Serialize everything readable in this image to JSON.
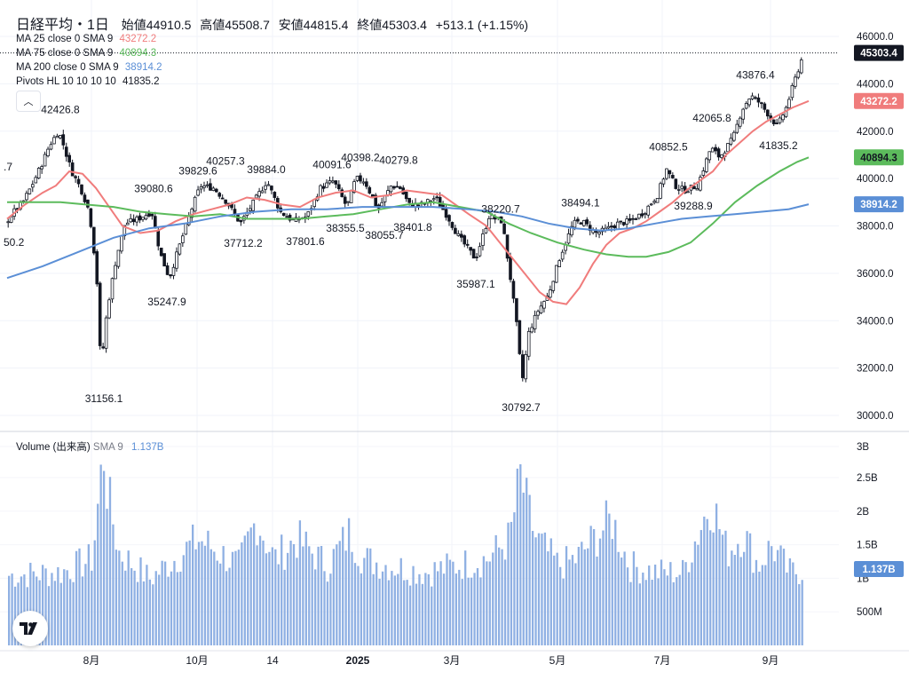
{
  "header": {
    "symbol": "日経平均・1日",
    "open_label": "始値",
    "open": "44910.5",
    "high_label": "高値",
    "high": "45508.7",
    "low_label": "安値",
    "low": "44815.4",
    "close_label": "終値",
    "close": "45303.4",
    "change": "+513.1 (+1.15%)"
  },
  "indicators": [
    {
      "label": "MA 25 close 0 SMA 9",
      "value": "43272.2",
      "color": "#f07c7c"
    },
    {
      "label": "MA 75 close 0 SMA 9",
      "value": "40894.3",
      "color": "#5cbb5c"
    },
    {
      "label": "MA 200 close 0 SMA 9",
      "value": "38914.2",
      "color": "#5b8fd6"
    },
    {
      "label": "Pivots HL 10 10 10 10",
      "value": "41835.2",
      "color": "#131722"
    }
  ],
  "volume_legend": {
    "label": "Volume (出来高)",
    "sma": "SMA 9",
    "value": "1.137B",
    "color": "#5b8fd6"
  },
  "price_axis_labels": [
    "46000.0",
    "44000.0",
    "42000.0",
    "40000.0",
    "38000.0",
    "36000.0",
    "34000.0",
    "32000.0",
    "30000.0"
  ],
  "price_badges": [
    {
      "value": "45303.4",
      "price": 45303.4,
      "bg": "#131722",
      "color": "#ffffff"
    },
    {
      "value": "43272.2",
      "price": 43272.2,
      "bg": "#f07c7c",
      "color": "#ffffff"
    },
    {
      "value": "40894.3",
      "price": 40894.3,
      "bg": "#5cbb5c",
      "color": "#131722"
    },
    {
      "value": "38914.2",
      "price": 38914.2,
      "bg": "#5b8fd6",
      "color": "#ffffff"
    }
  ],
  "volume_axis_labels": [
    "3B",
    "2.5B",
    "2B",
    "1.5B",
    "1B",
    "500M"
  ],
  "volume_badge": {
    "value": "1.137B"
  },
  "time_axis_labels": [
    "8月",
    "10月",
    "14",
    "2025",
    "3月",
    "5月",
    "7月",
    "9月"
  ],
  "chart_data": [
    {
      "type": "candlestick",
      "title": "日経平均・1日",
      "xlabel": "",
      "ylabel": "",
      "ylim": [
        29500,
        46800
      ],
      "y_ticks": [
        30000,
        32000,
        34000,
        36000,
        38000,
        40000,
        42000,
        44000,
        46000
      ],
      "series": [
        {
          "name": "MA 25 close 0 SMA 9",
          "color": "#f07c7c",
          "points": [
            [
              0,
              38300
            ],
            [
              20,
              38900
            ],
            [
              40,
              39400
            ],
            [
              55,
              39700
            ],
            [
              70,
              40300
            ],
            [
              85,
              40200
            ],
            [
              100,
              39600
            ],
            [
              115,
              38800
            ],
            [
              130,
              38000
            ],
            [
              150,
              37700
            ],
            [
              170,
              37800
            ],
            [
              190,
              38200
            ],
            [
              210,
              38500
            ],
            [
              230,
              38700
            ],
            [
              250,
              38900
            ],
            [
              270,
              39200
            ],
            [
              290,
              39100
            ],
            [
              310,
              38900
            ],
            [
              330,
              38800
            ],
            [
              350,
              39200
            ],
            [
              370,
              39400
            ],
            [
              390,
              39500
            ],
            [
              410,
              39200
            ],
            [
              430,
              39300
            ],
            [
              450,
              39500
            ],
            [
              470,
              39400
            ],
            [
              490,
              39300
            ],
            [
              505,
              38900
            ],
            [
              520,
              38500
            ],
            [
              540,
              38000
            ],
            [
              555,
              37300
            ],
            [
              570,
              36600
            ],
            [
              585,
              35900
            ],
            [
              600,
              35200
            ],
            [
              615,
              34800
            ],
            [
              630,
              34700
            ],
            [
              645,
              35400
            ],
            [
              660,
              36400
            ],
            [
              675,
              37200
            ],
            [
              690,
              37700
            ],
            [
              705,
              37900
            ],
            [
              720,
              38200
            ],
            [
              735,
              38600
            ],
            [
              750,
              39000
            ],
            [
              765,
              39500
            ],
            [
              780,
              39900
            ],
            [
              795,
              40300
            ],
            [
              810,
              41000
            ],
            [
              825,
              41500
            ],
            [
              840,
              42000
            ],
            [
              855,
              42400
            ],
            [
              870,
              42700
            ],
            [
              885,
              43000
            ],
            [
              903,
              43272
            ]
          ]
        },
        {
          "name": "MA 75 close 0 SMA 9",
          "color": "#5cbb5c",
          "points": [
            [
              0,
              39000
            ],
            [
              30,
              39000
            ],
            [
              60,
              39000
            ],
            [
              90,
              38900
            ],
            [
              120,
              38800
            ],
            [
              150,
              38600
            ],
            [
              180,
              38500
            ],
            [
              210,
              38400
            ],
            [
              240,
              38500
            ],
            [
              270,
              38300
            ],
            [
              300,
              38300
            ],
            [
              330,
              38300
            ],
            [
              360,
              38400
            ],
            [
              390,
              38500
            ],
            [
              420,
              38700
            ],
            [
              450,
              38900
            ],
            [
              480,
              39000
            ],
            [
              510,
              38800
            ],
            [
              540,
              38600
            ],
            [
              565,
              38100
            ],
            [
              590,
              37700
            ],
            [
              620,
              37300
            ],
            [
              650,
              37000
            ],
            [
              675,
              36800
            ],
            [
              700,
              36700
            ],
            [
              720,
              36700
            ],
            [
              745,
              36900
            ],
            [
              770,
              37300
            ],
            [
              795,
              38100
            ],
            [
              820,
              39000
            ],
            [
              845,
              39700
            ],
            [
              870,
              40300
            ],
            [
              890,
              40700
            ],
            [
              903,
              40894
            ]
          ]
        },
        {
          "name": "MA 200 close 0 SMA 9",
          "color": "#5b8fd6",
          "points": [
            [
              0,
              35800
            ],
            [
              40,
              36300
            ],
            [
              80,
              36900
            ],
            [
              120,
              37500
            ],
            [
              160,
              37900
            ],
            [
              200,
              38100
            ],
            [
              240,
              38400
            ],
            [
              280,
              38600
            ],
            [
              320,
              38700
            ],
            [
              360,
              38700
            ],
            [
              400,
              38800
            ],
            [
              440,
              38800
            ],
            [
              480,
              38800
            ],
            [
              520,
              38700
            ],
            [
              550,
              38600
            ],
            [
              580,
              38400
            ],
            [
              610,
              38100
            ],
            [
              640,
              37900
            ],
            [
              670,
              37800
            ],
            [
              700,
              37900
            ],
            [
              730,
              38100
            ],
            [
              760,
              38300
            ],
            [
              790,
              38400
            ],
            [
              820,
              38500
            ],
            [
              850,
              38600
            ],
            [
              880,
              38700
            ],
            [
              903,
              38914
            ]
          ]
        }
      ],
      "candles_path": [
        [
          0,
          38100
        ],
        [
          10,
          38600
        ],
        [
          20,
          39000
        ],
        [
          30,
          39700
        ],
        [
          40,
          40500
        ],
        [
          50,
          41400
        ],
        [
          60,
          42000
        ],
        [
          65,
          41500
        ],
        [
          75,
          40300
        ],
        [
          85,
          39600
        ],
        [
          95,
          38600
        ],
        [
          103,
          36000
        ],
        [
          108,
          32000
        ],
        [
          115,
          34500
        ],
        [
          125,
          36600
        ],
        [
          135,
          38100
        ],
        [
          150,
          38300
        ],
        [
          165,
          38600
        ],
        [
          175,
          36800
        ],
        [
          185,
          35800
        ],
        [
          195,
          37000
        ],
        [
          210,
          38700
        ],
        [
          220,
          39700
        ],
        [
          235,
          39600
        ],
        [
          250,
          39000
        ],
        [
          265,
          38100
        ],
        [
          280,
          39000
        ],
        [
          295,
          39900
        ],
        [
          310,
          38600
        ],
        [
          325,
          38200
        ],
        [
          340,
          38400
        ],
        [
          355,
          39600
        ],
        [
          370,
          39900
        ],
        [
          385,
          38800
        ],
        [
          395,
          40000
        ],
        [
          405,
          39900
        ],
        [
          420,
          38700
        ],
        [
          435,
          39700
        ],
        [
          445,
          39600
        ],
        [
          455,
          38900
        ],
        [
          470,
          38900
        ],
        [
          485,
          39200
        ],
        [
          500,
          38300
        ],
        [
          510,
          37600
        ],
        [
          520,
          37100
        ],
        [
          530,
          36600
        ],
        [
          545,
          38400
        ],
        [
          560,
          38200
        ],
        [
          570,
          35600
        ],
        [
          578,
          33300
        ],
        [
          582,
          31300
        ],
        [
          590,
          33500
        ],
        [
          600,
          34400
        ],
        [
          612,
          35100
        ],
        [
          625,
          36700
        ],
        [
          640,
          38100
        ],
        [
          650,
          38200
        ],
        [
          665,
          37700
        ],
        [
          675,
          37800
        ],
        [
          690,
          38100
        ],
        [
          705,
          38200
        ],
        [
          720,
          38600
        ],
        [
          735,
          39300
        ],
        [
          745,
          40400
        ],
        [
          755,
          39700
        ],
        [
          765,
          39500
        ],
        [
          780,
          39700
        ],
        [
          795,
          41300
        ],
        [
          805,
          40900
        ],
        [
          820,
          41700
        ],
        [
          830,
          42900
        ],
        [
          840,
          43500
        ],
        [
          850,
          43200
        ],
        [
          860,
          42700
        ],
        [
          870,
          42200
        ],
        [
          880,
          43000
        ],
        [
          890,
          44200
        ],
        [
          897,
          45000
        ],
        [
          903,
          45303
        ]
      ],
      "pivots": [
        {
          "label": "42426.8",
          "x": 60,
          "price": 42426.8,
          "pos": "top"
        },
        {
          "label": "31156.1",
          "x": 109,
          "price": 31156.1,
          "pos": "bottom"
        },
        {
          "label": "39080.6",
          "x": 165,
          "price": 39080.6,
          "pos": "top"
        },
        {
          "label": "35247.9",
          "x": 180,
          "price": 35247.9,
          "pos": "bottom"
        },
        {
          "label": "39829.6",
          "x": 215,
          "price": 39829.6,
          "pos": "top"
        },
        {
          "label": "40257.3",
          "x": 246,
          "price": 40257.3,
          "pos": "top"
        },
        {
          "label": "37712.2",
          "x": 266,
          "price": 37712.2,
          "pos": "bottom"
        },
        {
          "label": "39884.0",
          "x": 292,
          "price": 39884.0,
          "pos": "top"
        },
        {
          "label": "37801.6",
          "x": 336,
          "price": 37801.6,
          "pos": "bottom"
        },
        {
          "label": "40091.6",
          "x": 366,
          "price": 40091.6,
          "pos": "top"
        },
        {
          "label": "38355.5",
          "x": 381,
          "price": 38355.5,
          "pos": "bottom"
        },
        {
          "label": "40398.2",
          "x": 398,
          "price": 40398.2,
          "pos": "top"
        },
        {
          "label": "38055.7",
          "x": 425,
          "price": 38055.7,
          "pos": "bottom"
        },
        {
          "label": "40279.8",
          "x": 441,
          "price": 40279.8,
          "pos": "top"
        },
        {
          "label": "38401.8",
          "x": 457,
          "price": 38401.8,
          "pos": "bottom"
        },
        {
          "label": "35987.1",
          "x": 528,
          "price": 35987.1,
          "pos": "bottom"
        },
        {
          "label": "38220.7",
          "x": 556,
          "price": 38220.7,
          "pos": "top"
        },
        {
          "label": "30792.7",
          "x": 579,
          "price": 30792.7,
          "pos": "bottom"
        },
        {
          "label": "38494.1",
          "x": 646,
          "price": 38494.1,
          "pos": "top"
        },
        {
          "label": "40852.5",
          "x": 745,
          "price": 40852.5,
          "pos": "top"
        },
        {
          "label": "39288.9",
          "x": 773,
          "price": 39288.9,
          "pos": "bottom"
        },
        {
          "label": "42065.8",
          "x": 794,
          "price": 42065.8,
          "pos": "top"
        },
        {
          "label": "43876.4",
          "x": 843,
          "price": 43876.4,
          "pos": "top"
        },
        {
          "label": "41835.2",
          "x": 869,
          "price": 41835.2,
          "pos": "bottom"
        }
      ],
      "edge_labels": [
        {
          "label": ".7",
          "price": 40500
        },
        {
          "label": "50.2",
          "price": 37300
        }
      ]
    },
    {
      "type": "bar",
      "title": "Volume (出来高)",
      "ylim": [
        0,
        3.0
      ],
      "y_ticks": [
        0.5,
        1.0,
        1.5,
        2.0,
        2.5,
        3.0
      ],
      "unit": "B",
      "series": [
        {
          "name": "Volume (出来高)",
          "color": "#8fb0e3"
        }
      ],
      "profile": [
        [
          0,
          1.05
        ],
        [
          60,
          1.1
        ],
        [
          95,
          1.3
        ],
        [
          105,
          2.6
        ],
        [
          108,
          2.9
        ],
        [
          112,
          2.3
        ],
        [
          125,
          1.4
        ],
        [
          160,
          1.0
        ],
        [
          215,
          1.6
        ],
        [
          260,
          1.2
        ],
        [
          280,
          1.9
        ],
        [
          300,
          1.3
        ],
        [
          325,
          1.6
        ],
        [
          360,
          1.2
        ],
        [
          385,
          1.7
        ],
        [
          400,
          1.3
        ],
        [
          430,
          1.2
        ],
        [
          470,
          1.1
        ],
        [
          505,
          1.2
        ],
        [
          540,
          1.3
        ],
        [
          565,
          1.6
        ],
        [
          578,
          2.6
        ],
        [
          582,
          2.2
        ],
        [
          595,
          1.6
        ],
        [
          620,
          1.2
        ],
        [
          640,
          1.3
        ],
        [
          680,
          1.9
        ],
        [
          700,
          1.2
        ],
        [
          730,
          1.1
        ],
        [
          760,
          1.1
        ],
        [
          792,
          2.2
        ],
        [
          810,
          1.4
        ],
        [
          828,
          1.7
        ],
        [
          845,
          1.2
        ],
        [
          860,
          1.5
        ],
        [
          880,
          1.1
        ],
        [
          903,
          1.137
        ]
      ]
    }
  ]
}
